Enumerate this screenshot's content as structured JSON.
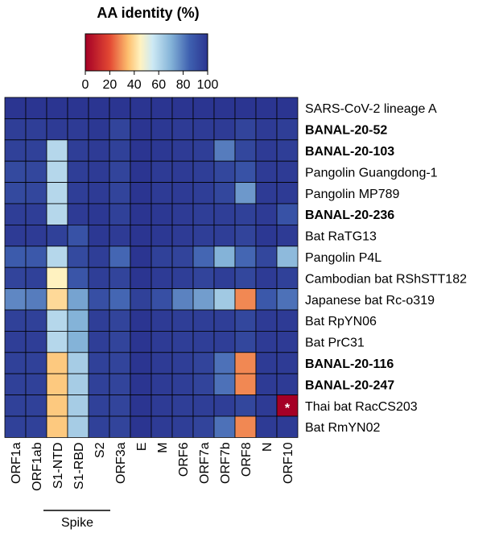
{
  "chart_data": {
    "type": "heatmap",
    "title": "AA identity (%)",
    "colorbar": {
      "min": 0,
      "max": 100,
      "ticks": [
        0,
        20,
        40,
        60,
        80,
        100
      ],
      "tick_labels": [
        "0",
        "20",
        "40",
        "60",
        "80",
        "100"
      ],
      "stops": [
        {
          "value": 0,
          "color": "#a50026"
        },
        {
          "value": 20,
          "color": "#e34933"
        },
        {
          "value": 35,
          "color": "#fdbf6f"
        },
        {
          "value": 45,
          "color": "#fff2c0"
        },
        {
          "value": 55,
          "color": "#cde9f4"
        },
        {
          "value": 70,
          "color": "#84b3d8"
        },
        {
          "value": 85,
          "color": "#3f61b0"
        },
        {
          "value": 100,
          "color": "#2b3591"
        }
      ]
    },
    "columns": [
      "ORF1a",
      "ORF1ab",
      "S1-NTD",
      "S1-RBD",
      "S2",
      "ORF3a",
      "E",
      "M",
      "ORF6",
      "ORF7a",
      "ORF7b",
      "ORF8",
      "N",
      "ORF10"
    ],
    "column_group": {
      "label": "Spike",
      "columns": [
        "S1-NTD",
        "S1-RBD",
        "S2"
      ]
    },
    "rows": [
      {
        "label": "SARS-CoV-2 lineage A",
        "bold": false,
        "values": [
          100,
          100,
          100,
          100,
          100,
          100,
          100,
          100,
          100,
          100,
          100,
          100,
          100,
          100
        ]
      },
      {
        "label": "BANAL-20-52",
        "bold": true,
        "values": [
          97,
          97,
          98,
          98,
          99,
          95,
          100,
          99,
          98,
          98,
          98,
          95,
          98,
          97
        ]
      },
      {
        "label": "BANAL-20-103",
        "bold": true,
        "values": [
          96,
          96,
          60,
          97,
          98,
          96,
          100,
          99,
          98,
          97,
          80,
          94,
          98,
          97
        ]
      },
      {
        "label": "Pangolin Guangdong-1",
        "bold": false,
        "values": [
          93,
          94,
          60,
          97,
          98,
          95,
          100,
          98,
          98,
          97,
          94,
          90,
          98,
          98
        ]
      },
      {
        "label": "Pangolin MP789",
        "bold": false,
        "values": [
          93,
          94,
          60,
          97,
          98,
          95,
          100,
          98,
          98,
          97,
          94,
          75,
          98,
          98
        ]
      },
      {
        "label": "BANAL-20-236",
        "bold": true,
        "values": [
          97,
          97,
          60,
          98,
          99,
          96,
          100,
          99,
          98,
          97,
          97,
          96,
          98,
          90
        ]
      },
      {
        "label": "Bat RaTG13",
        "bold": false,
        "values": [
          98,
          98,
          96,
          90,
          99,
          98,
          100,
          99,
          98,
          97,
          97,
          95,
          99,
          98
        ]
      },
      {
        "label": "Pangolin P4L",
        "bold": false,
        "values": [
          87,
          88,
          60,
          93,
          97,
          84,
          100,
          96,
          95,
          84,
          70,
          84,
          94,
          68
        ]
      },
      {
        "label": "Cambodian bat RShSTT182",
        "bold": false,
        "values": [
          95,
          96,
          45,
          89,
          97,
          95,
          100,
          98,
          97,
          95,
          97,
          94,
          98,
          96
        ]
      },
      {
        "label": "Japanese bat Rc-o319",
        "bold": false,
        "values": [
          78,
          80,
          40,
          73,
          91,
          84,
          96,
          91,
          79,
          74,
          64,
          28,
          88,
          82
        ]
      },
      {
        "label": "Bat RpYN06",
        "bold": false,
        "values": [
          96,
          96,
          60,
          70,
          97,
          95,
          100,
          98,
          97,
          97,
          97,
          94,
          98,
          98
        ]
      },
      {
        "label": "Bat PrC31",
        "bold": false,
        "values": [
          97,
          97,
          60,
          70,
          97,
          95,
          100,
          98,
          97,
          97,
          97,
          94,
          98,
          98
        ]
      },
      {
        "label": "BANAL-20-116",
        "bold": true,
        "values": [
          96,
          96,
          37,
          63,
          96,
          95,
          100,
          98,
          97,
          95,
          82,
          28,
          98,
          98
        ]
      },
      {
        "label": "BANAL-20-247",
        "bold": true,
        "values": [
          96,
          96,
          37,
          63,
          96,
          95,
          100,
          98,
          97,
          95,
          82,
          28,
          98,
          98
        ]
      },
      {
        "label": "Thai bat RacCS203",
        "bold": false,
        "values": [
          96,
          96,
          37,
          63,
          96,
          95,
          100,
          98,
          97,
          97,
          97,
          94,
          98,
          0
        ],
        "annotations": [
          {
            "column": "ORF10",
            "text": "*"
          }
        ]
      },
      {
        "label": "Bat RmYN02",
        "bold": false,
        "values": [
          96,
          96,
          37,
          63,
          96,
          95,
          100,
          98,
          97,
          95,
          82,
          28,
          98,
          98
        ]
      }
    ]
  }
}
